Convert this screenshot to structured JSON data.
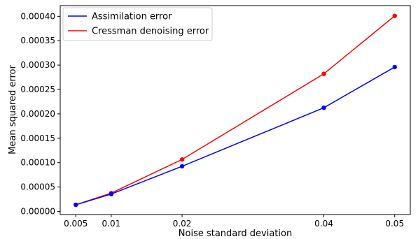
{
  "chart_data": {
    "type": "line",
    "title": "",
    "xlabel": "Noise standard deviation",
    "ylabel": "Mean squared error",
    "x": [
      0.005,
      0.01,
      0.02,
      0.04,
      0.05
    ],
    "x_tick_labels": [
      "0.005",
      "0.01",
      "0.02",
      "0.04",
      "0.05"
    ],
    "y_ticks": [
      "0.00000",
      "0.00005",
      "0.00010",
      "0.00015",
      "0.00020",
      "0.00025",
      "0.00030",
      "0.00035",
      "0.00040"
    ],
    "xlim": [
      0.0028,
      0.0522
    ],
    "ylim": [
      -6.5e-06,
      0.000422
    ],
    "grid": false,
    "legend_position": "top-left",
    "series": [
      {
        "name": "Assimilation error",
        "color": "#0000ff",
        "values": [
          1.35e-05,
          3.55e-05,
          9.25e-05,
          0.0002125,
          0.000296
        ]
      },
      {
        "name": "Cressman denoising error",
        "color": "#ff0000",
        "values": [
          1.35e-05,
          3.75e-05,
          0.0001065,
          0.000282,
          0.000401
        ]
      }
    ]
  }
}
